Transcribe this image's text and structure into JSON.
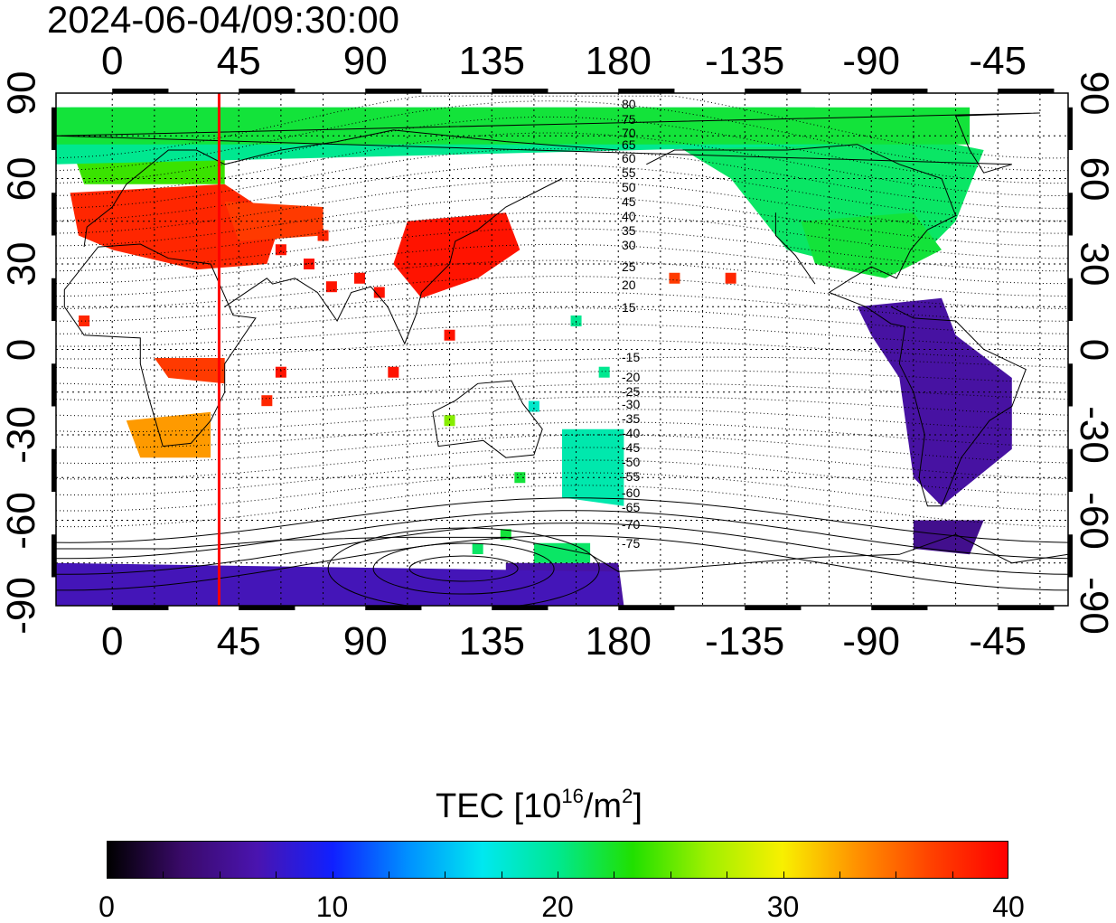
{
  "timestamp": "2024-06-04/09:30:00",
  "map": {
    "top_lon_labels": [
      "0",
      "45",
      "90",
      "135",
      "180",
      "-135",
      "-90",
      "-45"
    ],
    "bottom_lon_labels": [
      "0",
      "45",
      "90",
      "135",
      "180",
      "-135",
      "-90",
      "-45"
    ],
    "left_lat_labels": [
      "90",
      "60",
      "30",
      "0",
      "-30",
      "-60",
      "-90"
    ],
    "right_lat_labels": [
      "90",
      "60",
      "30",
      "0",
      "-30",
      "-60",
      "-90"
    ],
    "marker_line_longitude": 38,
    "marker_line_color": "#ff0000",
    "contour_labels": [
      "80",
      "75",
      "70",
      "65",
      "60",
      "55",
      "50",
      "45",
      "40",
      "35",
      "30",
      "25",
      "20",
      "15",
      "-15",
      "-20",
      "-25",
      "-30",
      "-35",
      "-40",
      "-45",
      "-50",
      "-55",
      "-60",
      "-65",
      "-70",
      "-75"
    ],
    "grid": true
  },
  "colorbar": {
    "title_prefix": "TEC  [10",
    "title_sup1": "16",
    "title_mid": "/m",
    "title_sup2": "2",
    "title_suffix": "]",
    "ticks": [
      "0",
      "10",
      "20",
      "30",
      "40"
    ],
    "range": [
      0,
      40
    ],
    "colors": [
      "#000000",
      "#3a0a6a",
      "#4a14b0",
      "#1020ff",
      "#0090ff",
      "#00e8f0",
      "#00e890",
      "#20e000",
      "#a0f000",
      "#f8f000",
      "#ff9000",
      "#ff4000",
      "#ff0000"
    ]
  }
}
